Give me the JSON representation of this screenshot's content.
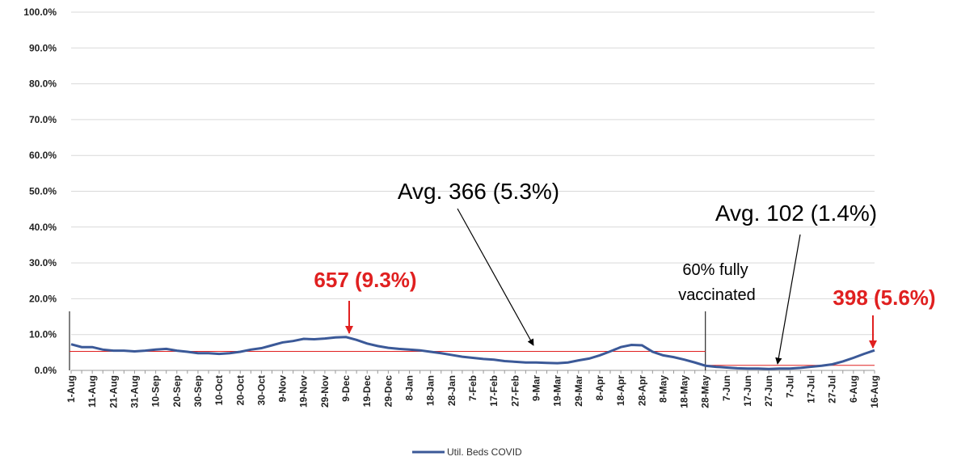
{
  "chart_data": {
    "type": "line",
    "categories": [
      "1-Aug",
      null,
      "11-Aug",
      null,
      "21-Aug",
      null,
      "31-Aug",
      null,
      "10-Sep",
      null,
      "20-Sep",
      null,
      "30-Sep",
      null,
      "10-Oct",
      null,
      "20-Oct",
      null,
      "30-Oct",
      null,
      "9-Nov",
      null,
      "19-Nov",
      null,
      "29-Nov",
      null,
      "9-Dec",
      null,
      "19-Dec",
      null,
      "29-Dec",
      null,
      "8-Jan",
      null,
      "18-Jan",
      null,
      "28-Jan",
      null,
      "7-Feb",
      null,
      "17-Feb",
      null,
      "27-Feb",
      null,
      "9-Mar",
      null,
      "19-Mar",
      null,
      "29-Mar",
      null,
      "8-Apr",
      null,
      "18-Apr",
      null,
      "28-Apr",
      null,
      "8-May",
      null,
      "18-May",
      null,
      "28-May",
      null,
      "7-Jun",
      null,
      "17-Jun",
      null,
      "27-Jun",
      null,
      "7-Jul",
      null,
      "17-Jul",
      null,
      "27-Jul",
      null,
      "6-Aug",
      null,
      "16-Aug"
    ],
    "series": [
      {
        "name": "Util. Beds COVID",
        "color": "#3b5998",
        "values": [
          7.3,
          6.5,
          6.5,
          5.8,
          5.5,
          5.5,
          5.3,
          5.5,
          5.8,
          6.0,
          5.5,
          5.2,
          4.8,
          4.8,
          4.6,
          4.8,
          5.2,
          5.8,
          6.2,
          7.0,
          7.8,
          8.2,
          8.8,
          8.7,
          8.9,
          9.2,
          9.3,
          8.5,
          7.5,
          6.8,
          6.3,
          6.0,
          5.8,
          5.6,
          5.2,
          4.8,
          4.3,
          3.8,
          3.5,
          3.2,
          3.0,
          2.6,
          2.4,
          2.2,
          2.2,
          2.1,
          2.0,
          2.2,
          2.8,
          3.3,
          4.2,
          5.3,
          6.5,
          7.1,
          7.0,
          5.2,
          4.2,
          3.7,
          3.0,
          2.2,
          1.3,
          1.0,
          0.8,
          0.6,
          0.5,
          0.5,
          0.4,
          0.5,
          0.5,
          0.7,
          1.0,
          1.3,
          1.7,
          2.5,
          3.5,
          4.6,
          5.6
        ]
      }
    ],
    "ylim": [
      0,
      100
    ],
    "yticks": [
      {
        "value": 0,
        "label": "0.0%"
      },
      {
        "value": 10,
        "label": "10.0%"
      },
      {
        "value": 20,
        "label": "20.0%"
      },
      {
        "value": 30,
        "label": "30.0%"
      },
      {
        "value": 40,
        "label": "40.0%"
      },
      {
        "value": 50,
        "label": "50.0%"
      },
      {
        "value": 60,
        "label": "60.0%"
      },
      {
        "value": 70,
        "label": "70.0%"
      },
      {
        "value": 80,
        "label": "80.0%"
      },
      {
        "value": 90,
        "label": "90.0%"
      },
      {
        "value": 100,
        "label": "100.0%"
      }
    ],
    "grid": true,
    "legend": "bottom",
    "reference_lines": [
      {
        "value": 5.3,
        "color": "#e02020"
      },
      {
        "value": 1.4,
        "color": "#e02020"
      }
    ],
    "annotations": [
      "657 (9.3%)",
      "398 (5.6%)",
      "Avg. 366 (5.3%)",
      "Avg. 102 (1.4%)",
      "60% fully",
      "vaccinated"
    ]
  }
}
